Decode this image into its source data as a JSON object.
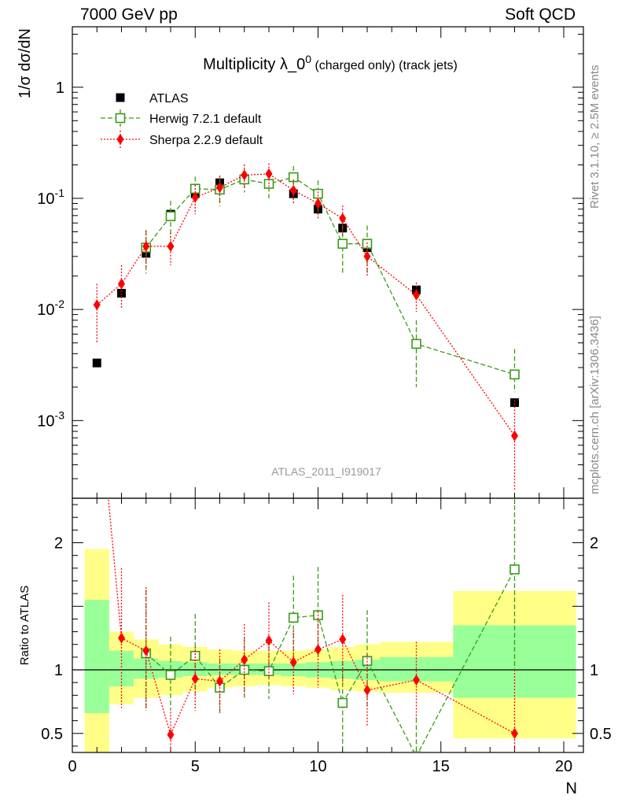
{
  "header": {
    "energy": "7000 GeV pp",
    "process": "Soft QCD",
    "rivet": "Rivet 3.1.10, ≥ 2.5M events",
    "site": "mcplots.cern.ch [arXiv:1306.3436]"
  },
  "chart_data": {
    "type": "scatter",
    "title": "Multiplicity λ_0",
    "title_sup": "0",
    "title_suffix": "(charged only) (track jets)",
    "ylabel": "1/σ dσ/dN",
    "ratio_ylabel": "Ratio to ATLAS",
    "xlabel": "N",
    "analysis": "ATLAS_2011_I919017",
    "xlim": [
      0,
      20.8
    ],
    "ylim": [
      0.0002,
      3.5
    ],
    "ratio_ylim": [
      0.35,
      2.35
    ],
    "yscale": "log",
    "x_ticks": [
      "0",
      "5",
      "10",
      "15",
      "20"
    ],
    "y_ticks": [
      "10^-3",
      "10^-2",
      "10^-1",
      "1"
    ],
    "ratio_ticks": [
      "0.5",
      "1",
      "2"
    ],
    "legend_position": "top-left",
    "series": [
      {
        "name": "ATLAS",
        "color": "#000000",
        "marker": "square-filled",
        "x": [
          1,
          2,
          3,
          4,
          5,
          6,
          7,
          8,
          9,
          10,
          11,
          12,
          14,
          18
        ],
        "y": [
          0.0033,
          0.014,
          0.032,
          0.072,
          0.11,
          0.138,
          0.148,
          0.135,
          0.11,
          0.08,
          0.054,
          0.036,
          0.015,
          0.00145
        ]
      },
      {
        "name": "Herwig 7.2.1 default",
        "color": "#3a9a1a",
        "marker": "square-open",
        "x": [
          3,
          4,
          5,
          6,
          7,
          8,
          9,
          10,
          11,
          12,
          14,
          18
        ],
        "y": [
          0.036,
          0.069,
          0.122,
          0.12,
          0.148,
          0.135,
          0.155,
          0.11,
          0.039,
          0.039,
          0.0049,
          0.0026
        ],
        "err_lo": [
          0.015,
          0.025,
          0.035,
          0.035,
          0.035,
          0.035,
          0.04,
          0.035,
          0.018,
          0.018,
          0.0029,
          0.0008
        ],
        "err_hi": [
          0.016,
          0.026,
          0.035,
          0.035,
          0.035,
          0.035,
          0.04,
          0.035,
          0.018,
          0.018,
          0.0031,
          0.0018
        ],
        "ratio": [
          1.13,
          0.96,
          1.11,
          0.86,
          1.0,
          0.99,
          1.41,
          1.43,
          0.74,
          1.07,
          0.32,
          1.79
        ],
        "ratio_err_lo": [
          0.45,
          0.28,
          0.3,
          0.2,
          0.22,
          0.22,
          0.3,
          0.35,
          0.35,
          0.35,
          0.3,
          0.8
        ],
        "ratio_err_hi": [
          0.5,
          0.3,
          0.33,
          0.23,
          0.25,
          0.25,
          0.33,
          0.38,
          0.33,
          0.4,
          0.3,
          0.6
        ]
      },
      {
        "name": "Sherpa 2.2.9 default",
        "color": "#ff0000",
        "marker": "diamond-filled",
        "x": [
          1,
          2,
          3,
          4,
          5,
          6,
          7,
          8,
          9,
          10,
          11,
          12,
          14,
          18
        ],
        "y": [
          0.011,
          0.017,
          0.037,
          0.037,
          0.102,
          0.125,
          0.162,
          0.166,
          0.118,
          0.09,
          0.066,
          0.03,
          0.0135,
          0.00073
        ],
        "err_lo": [
          0.006,
          0.007,
          0.013,
          0.012,
          0.03,
          0.035,
          0.04,
          0.04,
          0.03,
          0.025,
          0.02,
          0.01,
          0.004,
          0.0005
        ],
        "err_hi": [
          0.006,
          0.008,
          0.014,
          0.012,
          0.03,
          0.035,
          0.04,
          0.04,
          0.03,
          0.025,
          0.02,
          0.01,
          0.004,
          0.0008
        ],
        "ratio": [
          3.3,
          1.25,
          1.15,
          0.49,
          0.93,
          0.91,
          1.08,
          1.23,
          1.06,
          1.16,
          1.24,
          0.84,
          0.92,
          0.5
        ],
        "ratio_err_lo": [
          0.8,
          0.55,
          0.46,
          0.18,
          0.25,
          0.25,
          0.28,
          0.3,
          0.25,
          0.3,
          0.35,
          0.28,
          0.3,
          0.35
        ],
        "ratio_err_hi": [
          0.8,
          0.55,
          0.5,
          0.18,
          0.25,
          0.25,
          0.28,
          0.3,
          0.25,
          0.3,
          0.35,
          0.28,
          0.3,
          0.5
        ]
      }
    ],
    "uncertainty_bands": {
      "edges": [
        0.5,
        1.5,
        2.5,
        3.5,
        4.5,
        5.5,
        6.5,
        7.5,
        8.5,
        9.5,
        10.5,
        11.5,
        12.5,
        15.5,
        20.5
      ],
      "stat_lo": [
        0.66,
        0.87,
        0.93,
        0.94,
        0.95,
        0.96,
        0.96,
        0.96,
        0.95,
        0.94,
        0.93,
        0.92,
        0.91,
        0.78
      ],
      "stat_hi": [
        1.55,
        1.15,
        1.09,
        1.07,
        1.06,
        1.05,
        1.05,
        1.05,
        1.05,
        1.06,
        1.07,
        1.08,
        1.1,
        1.35
      ],
      "total_lo": [
        0.3,
        0.73,
        0.78,
        0.8,
        0.83,
        0.86,
        0.87,
        0.88,
        0.87,
        0.86,
        0.84,
        0.83,
        0.82,
        0.46
      ],
      "total_hi": [
        1.95,
        1.3,
        1.24,
        1.2,
        1.18,
        1.16,
        1.15,
        1.15,
        1.15,
        1.16,
        1.18,
        1.2,
        1.22,
        1.62
      ],
      "stat_color": "#99ff99",
      "total_color": "#ffff88"
    }
  }
}
